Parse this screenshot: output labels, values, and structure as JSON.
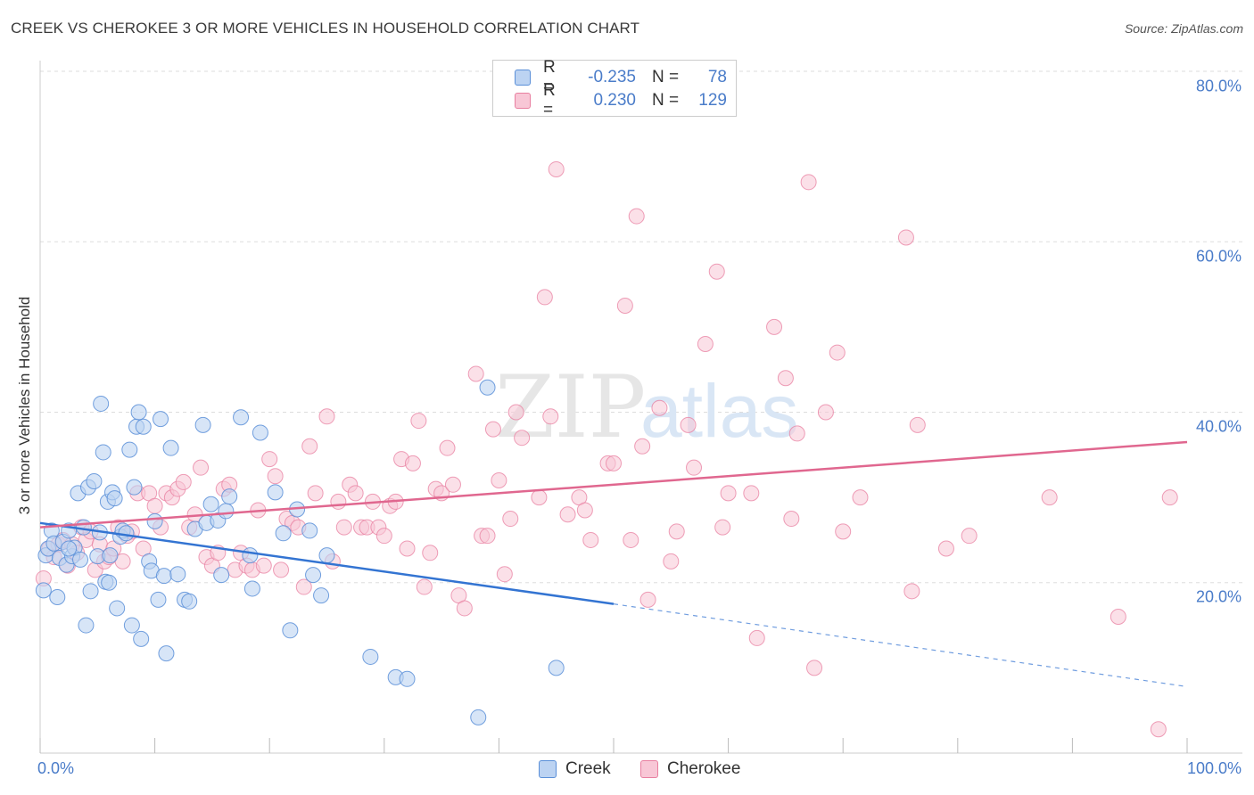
{
  "header": {
    "title": "CREEK VS CHEROKEE 3 OR MORE VEHICLES IN HOUSEHOLD CORRELATION CHART",
    "source": "Source: ZipAtlas.com"
  },
  "watermark": "ZIPatlas",
  "colors": {
    "creek_fill": "#bcd3f2",
    "creek_stroke": "#5a8fd8",
    "creek_line": "#3374d2",
    "cherokee_fill": "#f8c7d6",
    "cherokee_stroke": "#e87fa0",
    "cherokee_line": "#e0678f",
    "tick_label": "#4a7cc9",
    "grid": "#dddddd"
  },
  "legend_top": {
    "rows": [
      {
        "r_label": "R =",
        "r_value": "-0.235",
        "n_label": "N =",
        "n_value": "78",
        "swatch": "creek"
      },
      {
        "r_label": "R =",
        "r_value": "0.230",
        "n_label": "N =",
        "n_value": "129",
        "swatch": "cherokee"
      }
    ]
  },
  "legend_bottom": [
    {
      "label": "Creek",
      "swatch": "creek"
    },
    {
      "label": "Cherokee",
      "swatch": "cherokee"
    }
  ],
  "chart_data": {
    "type": "scatter",
    "title": "CREEK VS CHEROKEE 3 OR MORE VEHICLES IN HOUSEHOLD CORRELATION CHART",
    "xlabel": "",
    "ylabel": "3 or more Vehicles in Household",
    "xlim": [
      0,
      100
    ],
    "ylim": [
      0,
      80
    ],
    "x_tick_labels": [
      "0.0%",
      "100.0%"
    ],
    "y_ticks": [
      20,
      40,
      60,
      80
    ],
    "y_tick_labels": [
      "20.0%",
      "40.0%",
      "60.0%",
      "80.0%"
    ],
    "grid": true,
    "legend_position": "top-center",
    "series": [
      {
        "name": "Creek",
        "r": -0.235,
        "n": 78,
        "trend": {
          "x": [
            0,
            50
          ],
          "y": [
            27.0,
            17.5
          ],
          "dashed_extension_to": [
            100,
            7.8
          ]
        },
        "points": [
          [
            0.3,
            19.1
          ],
          [
            0.5,
            23.2
          ],
          [
            0.7,
            24.0
          ],
          [
            1.0,
            26.1
          ],
          [
            1.2,
            24.6
          ],
          [
            1.5,
            18.3
          ],
          [
            1.7,
            22.9
          ],
          [
            2.0,
            24.8
          ],
          [
            2.3,
            22.1
          ],
          [
            2.5,
            26.1
          ],
          [
            2.8,
            23.1
          ],
          [
            3.0,
            24.1
          ],
          [
            3.3,
            30.5
          ],
          [
            3.5,
            22.7
          ],
          [
            3.8,
            26.5
          ],
          [
            4.0,
            15.0
          ],
          [
            4.2,
            31.2
          ],
          [
            4.4,
            19.0
          ],
          [
            4.7,
            31.9
          ],
          [
            5.0,
            23.1
          ],
          [
            5.2,
            25.9
          ],
          [
            5.3,
            41.0
          ],
          [
            5.5,
            35.3
          ],
          [
            5.7,
            20.1
          ],
          [
            5.9,
            29.5
          ],
          [
            6.1,
            23.2
          ],
          [
            6.3,
            30.6
          ],
          [
            6.5,
            29.9
          ],
          [
            6.7,
            17.0
          ],
          [
            7.0,
            25.4
          ],
          [
            7.2,
            26.1
          ],
          [
            7.5,
            25.8
          ],
          [
            7.8,
            35.6
          ],
          [
            8.0,
            15.0
          ],
          [
            8.2,
            31.2
          ],
          [
            8.4,
            38.3
          ],
          [
            8.6,
            40.0
          ],
          [
            8.8,
            13.4
          ],
          [
            9.0,
            38.3
          ],
          [
            9.5,
            22.5
          ],
          [
            9.7,
            21.4
          ],
          [
            10.0,
            27.2
          ],
          [
            10.3,
            18.0
          ],
          [
            10.5,
            39.2
          ],
          [
            10.8,
            20.8
          ],
          [
            11.0,
            11.7
          ],
          [
            11.4,
            35.8
          ],
          [
            12.0,
            21.0
          ],
          [
            12.6,
            18.0
          ],
          [
            13.0,
            17.8
          ],
          [
            13.5,
            26.3
          ],
          [
            14.2,
            38.5
          ],
          [
            14.5,
            27.0
          ],
          [
            14.9,
            29.2
          ],
          [
            15.5,
            27.3
          ],
          [
            15.8,
            20.9
          ],
          [
            16.2,
            28.4
          ],
          [
            16.5,
            30.1
          ],
          [
            17.5,
            39.4
          ],
          [
            18.3,
            23.2
          ],
          [
            18.5,
            19.3
          ],
          [
            19.2,
            37.6
          ],
          [
            20.5,
            30.6
          ],
          [
            21.2,
            25.8
          ],
          [
            21.8,
            14.4
          ],
          [
            22.4,
            28.6
          ],
          [
            23.5,
            26.1
          ],
          [
            23.8,
            20.9
          ],
          [
            24.5,
            18.5
          ],
          [
            25.0,
            23.2
          ],
          [
            28.8,
            11.3
          ],
          [
            31.0,
            8.9
          ],
          [
            32.0,
            8.7
          ],
          [
            38.2,
            4.2
          ],
          [
            39.0,
            42.9
          ],
          [
            45.0,
            10.0
          ],
          [
            2.5,
            24.0
          ],
          [
            6.0,
            20.0
          ]
        ]
      },
      {
        "name": "Cherokee",
        "r": 0.23,
        "n": 129,
        "trend": {
          "x": [
            0,
            100
          ],
          "y": [
            26.5,
            36.5
          ]
        },
        "points": [
          [
            0.3,
            20.5
          ],
          [
            0.8,
            24.0
          ],
          [
            1.2,
            23.0
          ],
          [
            1.6,
            24.5
          ],
          [
            2.0,
            25.0
          ],
          [
            2.4,
            22.0
          ],
          [
            2.8,
            24.5
          ],
          [
            3.2,
            23.5
          ],
          [
            3.6,
            26.5
          ],
          [
            4.0,
            25.0
          ],
          [
            4.4,
            26.0
          ],
          [
            4.8,
            21.5
          ],
          [
            5.2,
            24.5
          ],
          [
            5.6,
            22.5
          ],
          [
            6.0,
            23.0
          ],
          [
            6.4,
            24.0
          ],
          [
            6.8,
            26.5
          ],
          [
            7.2,
            22.5
          ],
          [
            7.6,
            25.5
          ],
          [
            8.0,
            26.0
          ],
          [
            8.5,
            30.5
          ],
          [
            9.0,
            24.0
          ],
          [
            9.5,
            30.5
          ],
          [
            10.0,
            29.0
          ],
          [
            10.5,
            26.5
          ],
          [
            11.0,
            30.5
          ],
          [
            11.5,
            30.0
          ],
          [
            12.0,
            31.0
          ],
          [
            12.5,
            31.8
          ],
          [
            13.0,
            26.5
          ],
          [
            13.5,
            28.0
          ],
          [
            14.0,
            33.5
          ],
          [
            14.5,
            23.0
          ],
          [
            15.0,
            22.0
          ],
          [
            15.5,
            23.5
          ],
          [
            16.0,
            31.0
          ],
          [
            16.5,
            31.5
          ],
          [
            17.0,
            21.5
          ],
          [
            17.5,
            23.5
          ],
          [
            18.0,
            22.0
          ],
          [
            18.5,
            21.5
          ],
          [
            19.0,
            28.5
          ],
          [
            19.5,
            22.0
          ],
          [
            20.0,
            34.5
          ],
          [
            20.5,
            32.5
          ],
          [
            21.0,
            21.5
          ],
          [
            21.5,
            27.5
          ],
          [
            22.0,
            27.0
          ],
          [
            22.5,
            26.5
          ],
          [
            23.0,
            19.5
          ],
          [
            23.5,
            36.0
          ],
          [
            24.0,
            30.5
          ],
          [
            25.0,
            39.5
          ],
          [
            25.5,
            22.5
          ],
          [
            26.0,
            29.5
          ],
          [
            26.5,
            26.5
          ],
          [
            27.0,
            31.5
          ],
          [
            27.5,
            30.5
          ],
          [
            28.0,
            26.5
          ],
          [
            28.5,
            26.5
          ],
          [
            29.0,
            29.5
          ],
          [
            29.5,
            26.5
          ],
          [
            30.0,
            25.5
          ],
          [
            30.5,
            29.0
          ],
          [
            31.0,
            29.5
          ],
          [
            31.5,
            34.5
          ],
          [
            32.0,
            24.0
          ],
          [
            32.5,
            34.0
          ],
          [
            33.0,
            39.0
          ],
          [
            33.5,
            19.5
          ],
          [
            34.0,
            23.5
          ],
          [
            34.5,
            31.0
          ],
          [
            35.0,
            30.5
          ],
          [
            35.5,
            35.8
          ],
          [
            36.0,
            31.5
          ],
          [
            36.5,
            18.5
          ],
          [
            37.0,
            17.0
          ],
          [
            38.0,
            44.5
          ],
          [
            38.5,
            25.5
          ],
          [
            39.0,
            25.5
          ],
          [
            39.5,
            38.0
          ],
          [
            40.0,
            32.0
          ],
          [
            40.5,
            21.0
          ],
          [
            41.0,
            27.5
          ],
          [
            41.5,
            40.0
          ],
          [
            42.0,
            37.0
          ],
          [
            43.5,
            30.0
          ],
          [
            44.0,
            53.5
          ],
          [
            44.5,
            39.5
          ],
          [
            45.0,
            68.5
          ],
          [
            46.0,
            28.0
          ],
          [
            47.0,
            30.0
          ],
          [
            47.5,
            28.5
          ],
          [
            48.0,
            25.0
          ],
          [
            49.5,
            34.0
          ],
          [
            50.0,
            34.0
          ],
          [
            51.0,
            52.5
          ],
          [
            51.5,
            25.0
          ],
          [
            52.0,
            63.0
          ],
          [
            52.5,
            36.0
          ],
          [
            53.0,
            18.0
          ],
          [
            54.0,
            40.5
          ],
          [
            55.0,
            22.5
          ],
          [
            55.5,
            26.0
          ],
          [
            56.5,
            38.5
          ],
          [
            57.0,
            33.5
          ],
          [
            58.0,
            48.0
          ],
          [
            59.0,
            56.5
          ],
          [
            59.5,
            26.5
          ],
          [
            60.0,
            30.5
          ],
          [
            62.0,
            30.5
          ],
          [
            62.5,
            13.5
          ],
          [
            64.0,
            50.0
          ],
          [
            65.0,
            44.0
          ],
          [
            65.5,
            27.5
          ],
          [
            66.0,
            37.5
          ],
          [
            67.0,
            67.0
          ],
          [
            67.5,
            10.0
          ],
          [
            68.5,
            40.0
          ],
          [
            69.5,
            47.0
          ],
          [
            70.0,
            26.0
          ],
          [
            71.5,
            30.0
          ],
          [
            75.5,
            60.5
          ],
          [
            76.0,
            19.0
          ],
          [
            76.5,
            38.5
          ],
          [
            79.0,
            24.0
          ],
          [
            81.0,
            25.5
          ],
          [
            88.0,
            30.0
          ],
          [
            94.0,
            16.0
          ],
          [
            97.5,
            2.8
          ],
          [
            98.5,
            30.0
          ]
        ]
      }
    ]
  }
}
